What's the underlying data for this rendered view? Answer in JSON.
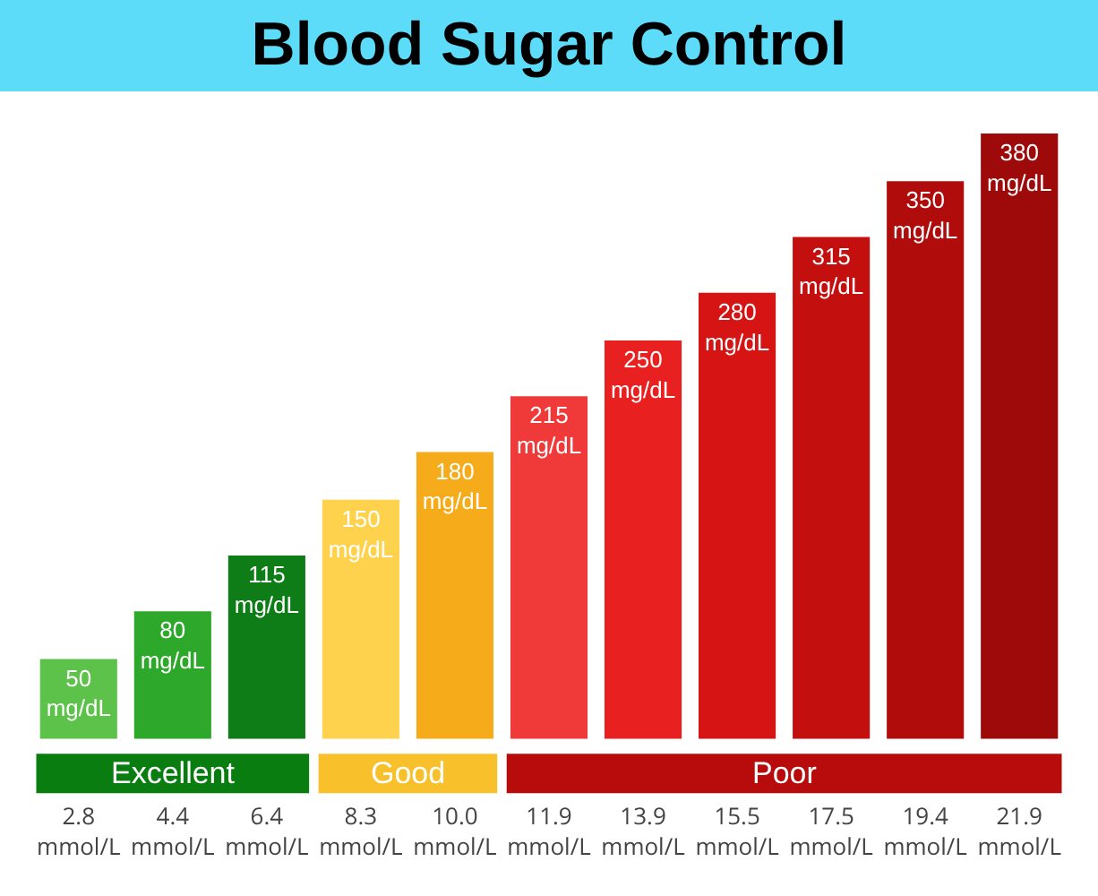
{
  "chart_data": {
    "type": "bar",
    "title": "Blood Sugar Control",
    "categories": [
      "2.8 mmol/L",
      "4.4 mmol/L",
      "6.4 mmol/L",
      "8.3 mmol/L",
      "10.0 mmol/L",
      "11.9 mmol/L",
      "13.9 mmol/L",
      "15.5 mmol/L",
      "17.5 mmol/L",
      "19.4 mmol/L",
      "21.9 mmol/L"
    ],
    "series": [
      {
        "name": "Excellent",
        "color": "#0a7d10",
        "values": [
          50,
          80,
          115,
          null,
          null,
          null,
          null,
          null,
          null,
          null,
          null
        ],
        "colors": [
          "#5cc24a",
          "#2ea82a",
          "#0e7d17",
          null,
          null,
          null,
          null,
          null,
          null,
          null,
          null
        ],
        "value_labels": [
          "50 mg/dL",
          "80 mg/dL",
          "115 mg/dL",
          null,
          null,
          null,
          null,
          null,
          null,
          null,
          null
        ]
      },
      {
        "name": "Good",
        "color": "#f8c02a",
        "values": [
          null,
          null,
          null,
          150,
          180,
          null,
          null,
          null,
          null,
          null,
          null
        ],
        "colors": [
          null,
          null,
          null,
          "#ffd24d",
          "#f6ab1a",
          null,
          null,
          null,
          null,
          null,
          null
        ],
        "value_labels": [
          null,
          null,
          null,
          "150 mg/dL",
          "180 mg/dL",
          null,
          null,
          null,
          null,
          null,
          null
        ]
      },
      {
        "name": "Poor",
        "color": "#b80c0c",
        "values": [
          null,
          null,
          null,
          null,
          null,
          215,
          250,
          280,
          315,
          350,
          380
        ],
        "colors": [
          null,
          null,
          null,
          null,
          null,
          "#f03a3a",
          "#e82020",
          "#d61414",
          "#c40f0f",
          "#b00c0c",
          "#9e0a0a"
        ],
        "value_labels": [
          null,
          null,
          null,
          null,
          null,
          "215 mg/dL",
          "250 mg/dL",
          "280 mg/dL",
          "315 mg/dL",
          "350 mg/dL",
          "380 mg/dL"
        ]
      }
    ]
  }
}
